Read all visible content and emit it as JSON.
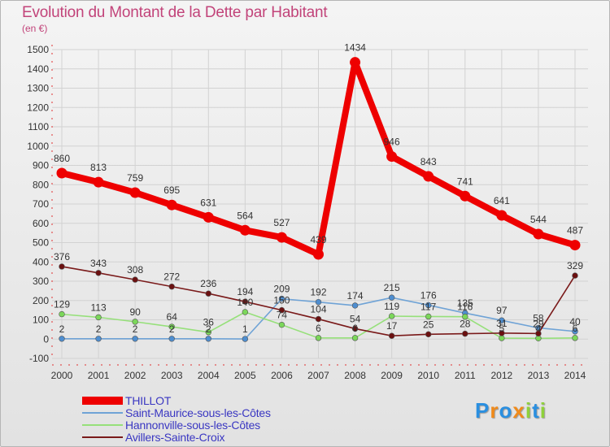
{
  "header": {
    "title": "Evolution du Montant de la Dette par Habitant",
    "unit": "(en €)"
  },
  "chart_data": {
    "type": "line",
    "title": "Evolution du Montant de la Dette par Habitant",
    "ylabel": "(en €)",
    "x": [
      "2000",
      "2001",
      "2002",
      "2003",
      "2004",
      "2005",
      "2006",
      "2007",
      "2008",
      "2009",
      "2010",
      "2011",
      "2012",
      "2013",
      "2014"
    ],
    "ylim": [
      -100,
      1500
    ],
    "yticks": [
      -100,
      0,
      100,
      200,
      300,
      400,
      500,
      600,
      700,
      800,
      900,
      1000,
      1100,
      1200,
      1300,
      1400,
      1500
    ],
    "grid": true,
    "legend_position": "bottom-left",
    "series": [
      {
        "name": "THILLOT",
        "color": "#ee0000",
        "values": [
          860,
          813,
          759,
          695,
          631,
          564,
          527,
          439,
          1434,
          946,
          843,
          741,
          641,
          544,
          487
        ]
      },
      {
        "name": "Saint-Maurice-sous-les-Côtes",
        "color": "#6fa3d6",
        "values": [
          2,
          2,
          2,
          2,
          2,
          1,
          209,
          192,
          174,
          215,
          176,
          135,
          97,
          58,
          40
        ]
      },
      {
        "name": "Hannonville-sous-les-Côtes",
        "color": "#96e07a",
        "values": [
          129,
          113,
          90,
          64,
          36,
          140,
          74,
          6,
          6,
          119,
          117,
          116,
          5,
          4,
          6
        ]
      },
      {
        "name": "Avillers-Sainte-Croix",
        "color": "#7a1a1a",
        "values": [
          376,
          343,
          308,
          272,
          236,
          194,
          150,
          104,
          54,
          17,
          25,
          28,
          31,
          29,
          329
        ]
      }
    ]
  },
  "logo": {
    "letters": [
      "P",
      "r",
      "o",
      "x",
      "i",
      "t",
      "i"
    ],
    "colors": [
      "#2a8fe0",
      "#f08a1a",
      "#2a8fe0",
      "#f08a1a",
      "#8fd13a",
      "#2a8fe0",
      "#8fd13a"
    ]
  }
}
